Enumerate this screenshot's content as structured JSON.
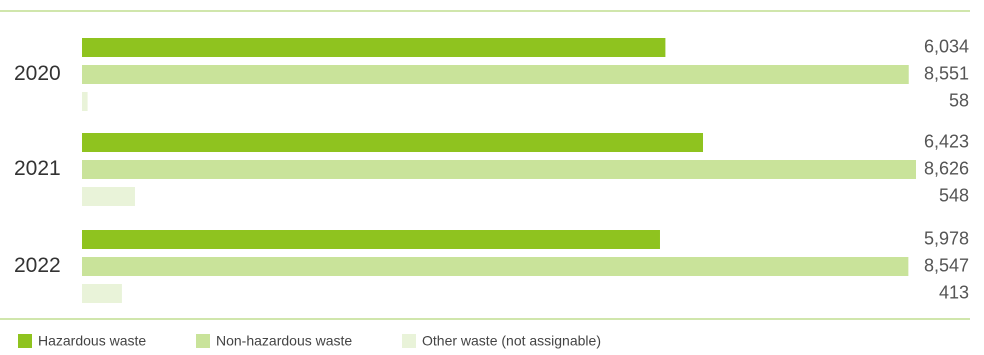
{
  "chart_data": {
    "type": "bar",
    "orientation": "horizontal",
    "categories": [
      "2020",
      "2021",
      "2022"
    ],
    "series": [
      {
        "name": "Hazardous waste",
        "color": "#8fc31f",
        "values": [
          6034,
          6423,
          5978
        ],
        "value_labels": [
          "6,034",
          "6,423",
          "5,978"
        ]
      },
      {
        "name": "Non-hazardous waste",
        "color": "#c9e39a",
        "values": [
          8551,
          8626,
          8547
        ],
        "value_labels": [
          "8,551",
          "8,626",
          "8,547"
        ]
      },
      {
        "name": "Other waste (not assignable)",
        "color": "#e9f3d9",
        "values": [
          58,
          548,
          413
        ],
        "value_labels": [
          "58",
          "548",
          "413"
        ]
      }
    ],
    "grid": false,
    "legend_position": "bottom-left",
    "separator_color": "#b5d77a"
  }
}
